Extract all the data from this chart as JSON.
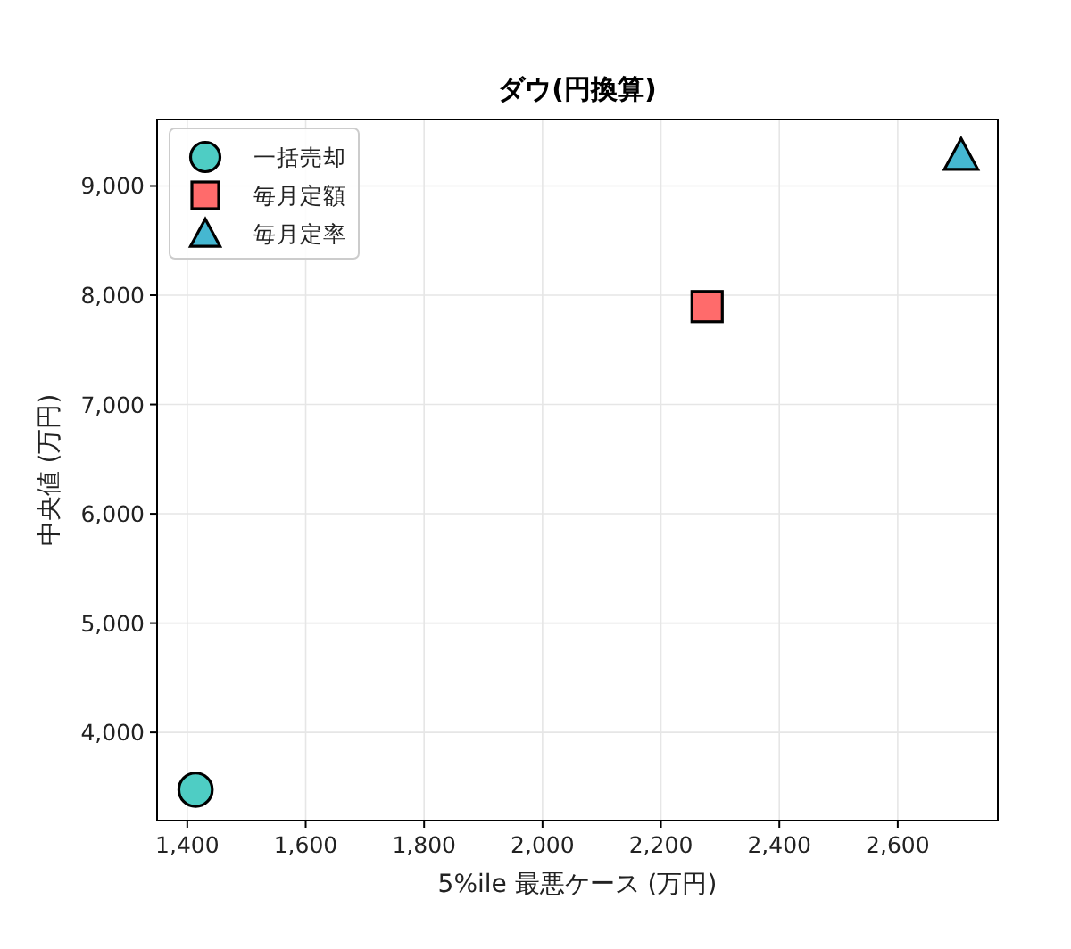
{
  "chart_data": {
    "type": "scatter",
    "title": "ダウ(円換算)",
    "xlabel": "5%ile 最悪ケース (万円)",
    "ylabel": "中央値 (万円)",
    "series": [
      {
        "name": "一括売却",
        "color": "#4ecdc4",
        "marker": "circle",
        "x": [
          1414
        ],
        "values": [
          3475
        ]
      },
      {
        "name": "毎月定額",
        "color": "#ff6b6b",
        "marker": "square",
        "x": [
          2278
        ],
        "values": [
          7896
        ]
      },
      {
        "name": "毎月定率",
        "color": "#45b7d1",
        "marker": "triangle",
        "x": [
          2707
        ],
        "values": [
          9282
        ]
      }
    ],
    "xlim": [
      1349,
      2769
    ],
    "ylim": [
      3193,
      9608
    ],
    "xticks": [
      {
        "value": 1400,
        "label": "1,400"
      },
      {
        "value": 1600,
        "label": "1,600"
      },
      {
        "value": 1800,
        "label": "1,800"
      },
      {
        "value": 2000,
        "label": "2,000"
      },
      {
        "value": 2200,
        "label": "2,200"
      },
      {
        "value": 2400,
        "label": "2,400"
      },
      {
        "value": 2600,
        "label": "2,600"
      }
    ],
    "yticks": [
      {
        "value": 4000,
        "label": "4,000"
      },
      {
        "value": 5000,
        "label": "5,000"
      },
      {
        "value": 6000,
        "label": "6,000"
      },
      {
        "value": 7000,
        "label": "7,000"
      },
      {
        "value": 8000,
        "label": "8,000"
      },
      {
        "value": 9000,
        "label": "9,000"
      }
    ],
    "grid": true,
    "legend": "top left"
  }
}
